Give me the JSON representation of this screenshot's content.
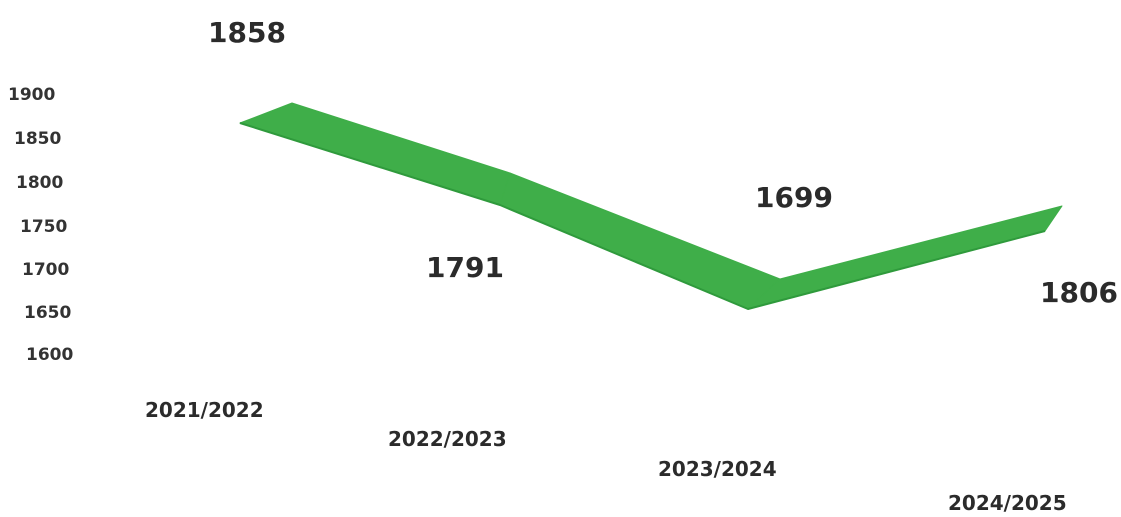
{
  "chart_data": {
    "type": "line",
    "title": "",
    "xlabel": "",
    "ylabel": "",
    "categories": [
      "2021/2022",
      "2022/2023",
      "2023/2024",
      "2024/2025"
    ],
    "series": [
      {
        "values": [
          1858,
          1791,
          1699,
          1806
        ],
        "color": "#3fae49"
      }
    ],
    "data_labels": [
      "1858",
      "1791",
      "1699",
      "1806"
    ],
    "yticks": [
      "1900",
      "1850",
      "1800",
      "1750",
      "1700",
      "1650",
      "1600"
    ],
    "ylim": [
      1600,
      1900
    ],
    "grid": false,
    "legend": "none",
    "style": "3d-ribbon"
  }
}
